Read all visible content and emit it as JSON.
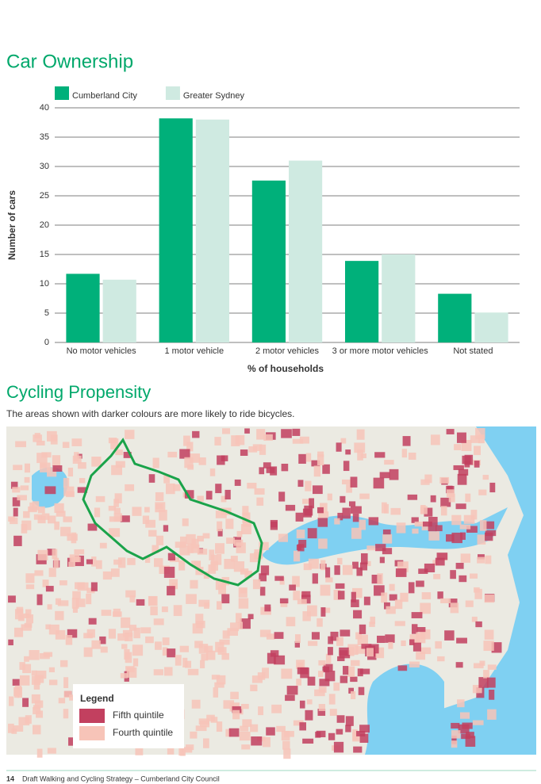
{
  "title": "Car Ownership",
  "chart_data": {
    "type": "bar",
    "ylabel": "Number of cars",
    "xlabel": "% of households",
    "categories": [
      "No motor vehicles",
      "1 motor vehicle",
      "2 motor vehicles",
      "3 or more motor vehicles",
      "Not stated"
    ],
    "series": [
      {
        "name": "Cumberland City",
        "color": "#00b07a",
        "values": [
          11.7,
          38.2,
          27.6,
          13.9,
          8.3
        ]
      },
      {
        "name": "Greater Sydney",
        "color": "#cfeae1",
        "values": [
          10.7,
          38,
          31,
          15,
          5.1
        ]
      }
    ],
    "ylim": [
      0,
      40
    ],
    "yticks": [
      0,
      5,
      10,
      15,
      20,
      25,
      30,
      35,
      40
    ],
    "grid": true,
    "legend": "top-left"
  },
  "cycling": {
    "title": "Cycling Propensity",
    "subtitle": "The areas shown with darker colours are more likely to ride bicycles.",
    "legend": {
      "title": "Legend",
      "items": [
        {
          "label": "Fifth quintile",
          "color": "#c2405f"
        },
        {
          "label": "Fourth quintile",
          "color": "#f7c4b8"
        }
      ]
    }
  },
  "footer": {
    "page": "14",
    "text": "Draft Walking and Cycling Strategy – Cumberland City Council"
  }
}
